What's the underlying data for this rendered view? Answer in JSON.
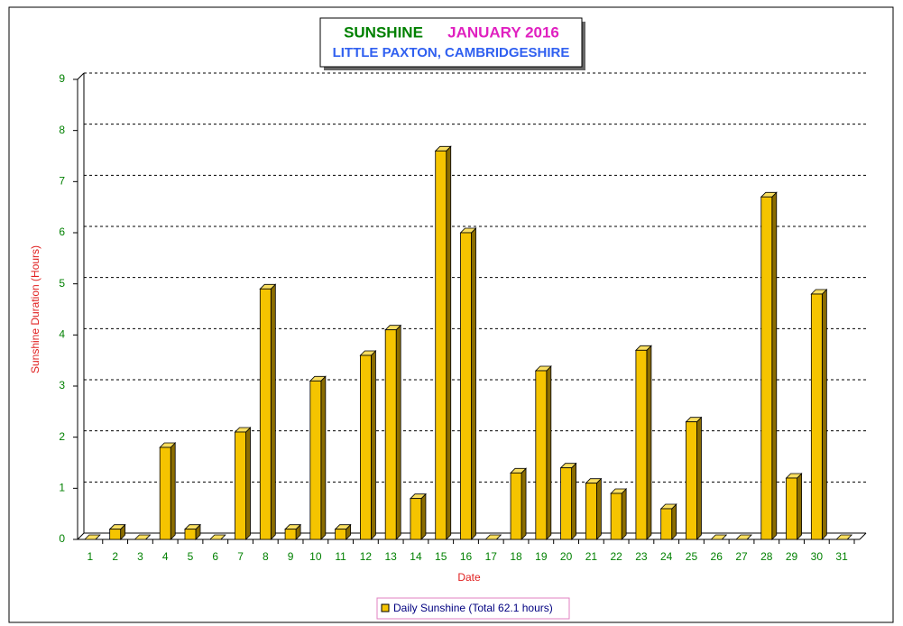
{
  "chart_data": {
    "type": "bar3d",
    "title": "SUNSHINE",
    "period": "JANUARY 2016",
    "subtitle": "LITTLE PAXTON, CAMBRIDGESHIRE",
    "x_label": "Date",
    "y_label": "Sunshine Duration (Hours)",
    "categories": [
      "1",
      "2",
      "3",
      "4",
      "5",
      "6",
      "7",
      "8",
      "9",
      "10",
      "11",
      "12",
      "13",
      "14",
      "15",
      "16",
      "17",
      "18",
      "19",
      "20",
      "21",
      "22",
      "23",
      "24",
      "25",
      "26",
      "27",
      "28",
      "29",
      "30",
      "31"
    ],
    "series": [
      {
        "name": "Daily Sunshine (Total 62.1 hours)",
        "color": "#f5c400",
        "values": [
          0,
          0.2,
          0,
          1.8,
          0.2,
          0,
          2.1,
          4.9,
          0.2,
          3.1,
          0.2,
          3.6,
          4.1,
          0.8,
          7.6,
          6.0,
          0,
          1.3,
          3.3,
          1.4,
          1.1,
          0.9,
          3.7,
          0.6,
          2.3,
          0,
          0,
          6.7,
          1.2,
          4.8,
          0
        ]
      }
    ],
    "ylim": [
      0,
      9
    ],
    "yticks": [
      0,
      1,
      2,
      3,
      4,
      5,
      6,
      7,
      8,
      9
    ],
    "grid": true
  }
}
